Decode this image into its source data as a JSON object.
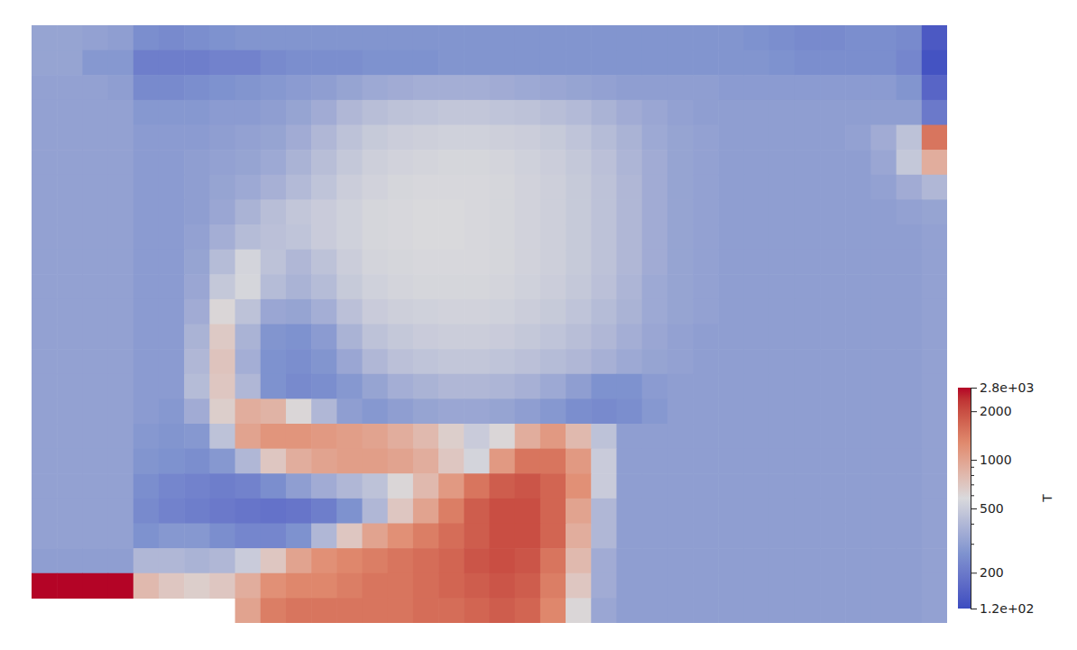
{
  "chart_data": {
    "type": "heatmap",
    "log": true,
    "tick_labels": false,
    "colorbar_title": "T",
    "colorbar_range": [
      120,
      2800
    ],
    "colorbar_ticks": [
      {
        "value": 2800,
        "label": "2.8e+03"
      },
      2000,
      1000,
      500,
      200,
      {
        "value": 120,
        "label": "1.2e+02"
      }
    ],
    "colorbar_minor_ticks": [
      300,
      400,
      600,
      700,
      800,
      900
    ],
    "cells": [
      [
        320,
        320,
        310,
        300,
        250,
        240,
        250,
        260,
        270,
        270,
        270,
        270,
        270,
        270,
        270,
        270,
        270,
        270,
        270,
        270,
        270,
        270,
        270,
        270,
        270,
        270,
        270,
        270,
        260,
        250,
        240,
        240,
        250,
        250,
        240,
        140
      ],
      [
        320,
        320,
        280,
        280,
        210,
        210,
        210,
        220,
        220,
        240,
        250,
        250,
        250,
        260,
        260,
        260,
        270,
        270,
        270,
        270,
        270,
        270,
        270,
        270,
        270,
        270,
        270,
        270,
        270,
        260,
        250,
        250,
        250,
        250,
        230,
        130
      ],
      [
        310,
        310,
        310,
        300,
        240,
        240,
        250,
        260,
        270,
        280,
        290,
        300,
        320,
        340,
        350,
        360,
        360,
        360,
        350,
        340,
        330,
        320,
        310,
        300,
        300,
        300,
        300,
        290,
        290,
        290,
        290,
        290,
        290,
        290,
        270,
        160
      ],
      [
        310,
        310,
        310,
        310,
        280,
        280,
        280,
        290,
        290,
        300,
        320,
        350,
        400,
        430,
        450,
        460,
        470,
        470,
        460,
        450,
        430,
        410,
        380,
        350,
        330,
        310,
        300,
        300,
        300,
        300,
        300,
        300,
        300,
        300,
        300,
        200
      ],
      [
        310,
        310,
        310,
        310,
        290,
        290,
        290,
        300,
        310,
        320,
        350,
        400,
        450,
        490,
        510,
        520,
        530,
        530,
        520,
        510,
        490,
        460,
        420,
        380,
        340,
        320,
        310,
        300,
        300,
        300,
        300,
        300,
        310,
        350,
        450,
        1500
      ],
      [
        310,
        310,
        310,
        310,
        290,
        290,
        300,
        310,
        320,
        340,
        380,
        430,
        480,
        520,
        540,
        550,
        560,
        560,
        550,
        530,
        510,
        480,
        440,
        390,
        350,
        320,
        310,
        300,
        300,
        300,
        300,
        300,
        300,
        330,
        480,
        900
      ],
      [
        310,
        310,
        310,
        310,
        290,
        290,
        300,
        320,
        340,
        370,
        410,
        460,
        510,
        540,
        560,
        570,
        570,
        570,
        560,
        540,
        520,
        490,
        450,
        400,
        350,
        320,
        310,
        300,
        300,
        300,
        300,
        300,
        300,
        310,
        350,
        400
      ],
      [
        310,
        310,
        310,
        310,
        290,
        290,
        300,
        330,
        380,
        430,
        470,
        500,
        530,
        560,
        570,
        580,
        580,
        570,
        560,
        540,
        520,
        490,
        450,
        400,
        350,
        320,
        310,
        300,
        300,
        300,
        300,
        300,
        300,
        300,
        310,
        320
      ],
      [
        310,
        310,
        310,
        310,
        290,
        290,
        310,
        360,
        420,
        440,
        460,
        500,
        530,
        560,
        570,
        580,
        580,
        570,
        560,
        540,
        520,
        490,
        450,
        400,
        350,
        320,
        310,
        300,
        300,
        300,
        300,
        300,
        300,
        300,
        300,
        310
      ],
      [
        310,
        310,
        310,
        310,
        290,
        290,
        320,
        420,
        550,
        450,
        400,
        450,
        510,
        550,
        560,
        570,
        570,
        570,
        560,
        540,
        520,
        490,
        450,
        400,
        350,
        320,
        310,
        300,
        300,
        300,
        300,
        300,
        300,
        300,
        300,
        310
      ],
      [
        310,
        310,
        310,
        310,
        290,
        290,
        330,
        480,
        560,
        420,
        380,
        420,
        490,
        530,
        550,
        560,
        560,
        560,
        550,
        530,
        510,
        480,
        440,
        390,
        340,
        320,
        310,
        300,
        300,
        300,
        300,
        300,
        300,
        300,
        300,
        310
      ],
      [
        310,
        310,
        310,
        310,
        290,
        290,
        350,
        600,
        450,
        330,
        320,
        360,
        440,
        500,
        520,
        530,
        540,
        540,
        530,
        510,
        490,
        460,
        420,
        380,
        340,
        320,
        310,
        300,
        300,
        300,
        300,
        300,
        300,
        300,
        300,
        310
      ],
      [
        310,
        310,
        310,
        310,
        290,
        290,
        380,
        680,
        380,
        270,
        260,
        290,
        380,
        450,
        480,
        500,
        510,
        510,
        500,
        480,
        460,
        430,
        400,
        360,
        330,
        310,
        300,
        300,
        300,
        300,
        300,
        300,
        300,
        300,
        300,
        310
      ],
      [
        310,
        310,
        310,
        310,
        290,
        290,
        400,
        720,
        360,
        260,
        250,
        270,
        330,
        400,
        440,
        460,
        470,
        470,
        460,
        440,
        420,
        400,
        370,
        340,
        320,
        310,
        300,
        300,
        300,
        300,
        300,
        300,
        300,
        300,
        300,
        310
      ],
      [
        310,
        310,
        310,
        310,
        290,
        290,
        420,
        700,
        400,
        260,
        240,
        250,
        280,
        320,
        360,
        380,
        400,
        400,
        390,
        370,
        340,
        300,
        260,
        260,
        290,
        300,
        300,
        300,
        300,
        300,
        300,
        300,
        300,
        300,
        300,
        310
      ],
      [
        310,
        310,
        310,
        310,
        290,
        280,
        350,
        650,
        900,
        850,
        600,
        400,
        300,
        280,
        300,
        320,
        330,
        330,
        320,
        300,
        280,
        250,
        240,
        250,
        280,
        300,
        300,
        300,
        300,
        300,
        300,
        300,
        300,
        300,
        300,
        310
      ],
      [
        310,
        310,
        310,
        310,
        280,
        270,
        280,
        450,
        1000,
        1150,
        1150,
        1100,
        1050,
        1000,
        900,
        800,
        650,
        500,
        600,
        900,
        1100,
        800,
        450,
        300,
        300,
        300,
        300,
        300,
        300,
        300,
        300,
        300,
        300,
        300,
        300,
        310
      ],
      [
        310,
        310,
        310,
        310,
        270,
        260,
        250,
        280,
        400,
        700,
        900,
        1000,
        1050,
        1050,
        1000,
        900,
        700,
        550,
        1100,
        1500,
        1500,
        1100,
        500,
        300,
        300,
        300,
        300,
        300,
        300,
        300,
        300,
        300,
        300,
        300,
        300,
        310
      ],
      [
        310,
        310,
        310,
        310,
        250,
        230,
        220,
        210,
        220,
        250,
        300,
        350,
        400,
        450,
        600,
        800,
        1100,
        1500,
        1800,
        1900,
        1700,
        1200,
        500,
        300,
        300,
        300,
        300,
        300,
        300,
        300,
        300,
        300,
        300,
        300,
        300,
        310
      ],
      [
        310,
        310,
        310,
        310,
        240,
        220,
        210,
        200,
        190,
        185,
        190,
        210,
        260,
        400,
        700,
        1000,
        1400,
        1800,
        2000,
        2000,
        1700,
        1000,
        400,
        300,
        300,
        300,
        300,
        300,
        300,
        300,
        300,
        300,
        300,
        300,
        300,
        310
      ],
      [
        310,
        310,
        310,
        310,
        260,
        280,
        280,
        250,
        230,
        230,
        260,
        400,
        700,
        1000,
        1200,
        1400,
        1600,
        1800,
        2000,
        2000,
        1700,
        900,
        400,
        300,
        300,
        300,
        300,
        300,
        300,
        300,
        300,
        300,
        300,
        300,
        300,
        310
      ],
      [
        300,
        300,
        300,
        300,
        400,
        400,
        380,
        400,
        500,
        700,
        1000,
        1200,
        1300,
        1400,
        1500,
        1600,
        1700,
        1900,
        2000,
        1900,
        1500,
        800,
        350,
        300,
        300,
        300,
        300,
        300,
        300,
        300,
        300,
        300,
        300,
        300,
        300,
        310
      ],
      [
        2800,
        2800,
        2800,
        2800,
        800,
        700,
        650,
        700,
        900,
        1200,
        1300,
        1300,
        1400,
        1500,
        1500,
        1600,
        1700,
        1800,
        1900,
        1800,
        1400,
        700,
        350,
        300,
        300,
        300,
        300,
        300,
        300,
        300,
        300,
        300,
        300,
        300,
        300,
        310
      ],
      [
        null,
        null,
        null,
        null,
        null,
        null,
        null,
        null,
        1000,
        1400,
        1500,
        1500,
        1500,
        1500,
        1500,
        1600,
        1600,
        1700,
        1800,
        1700,
        1300,
        600,
        330,
        300,
        300,
        300,
        300,
        300,
        300,
        300,
        300,
        300,
        300,
        300,
        300,
        310
      ]
    ]
  }
}
